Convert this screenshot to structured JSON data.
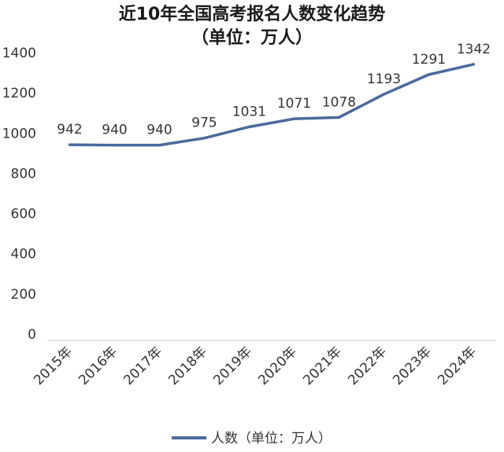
{
  "chart_data": {
    "type": "line",
    "title": "近10年全国高考报名人数变化趋势",
    "subtitle": "（单位：万人）",
    "categories": [
      "2015年",
      "2016年",
      "2017年",
      "2018年",
      "2019年",
      "2020年",
      "2021年",
      "2022年",
      "2023年",
      "2024年"
    ],
    "series": [
      {
        "name": "人数（单位：万人）",
        "values": [
          942,
          940,
          940,
          975,
          1031,
          1071,
          1078,
          1193,
          1291,
          1342
        ],
        "color": "#4a6a9c"
      }
    ],
    "ylim": [
      0,
      1400
    ],
    "yticks": [
      0,
      200,
      400,
      600,
      800,
      1000,
      1200,
      1400
    ],
    "grid": false,
    "legend": "bottom",
    "data_labels": true
  }
}
